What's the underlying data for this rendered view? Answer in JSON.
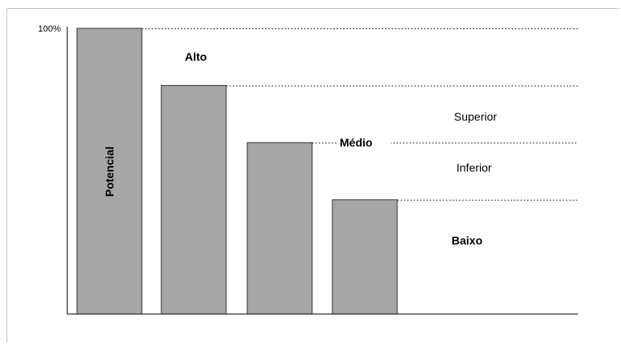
{
  "chart_data": {
    "type": "bar",
    "categories": [
      "Potencial",
      "",
      "",
      ""
    ],
    "values": [
      100,
      80,
      60,
      40
    ],
    "bar_labels": [
      "Potencial",
      "",
      "",
      ""
    ],
    "ylim": [
      0,
      100
    ],
    "y_tick_labels": [
      "100%"
    ],
    "reference_lines": [
      100,
      80,
      60,
      40
    ],
    "zone_labels": {
      "alto": "Alto",
      "medio": "Médio",
      "superior": "Superior",
      "inferior": "Inferior",
      "baixo": "Baixo"
    },
    "colors": {
      "bar_fill": "#a6a6a6",
      "bar_stroke": "#333333",
      "axis": "#000000",
      "grid": "#404040"
    },
    "grid": false,
    "legend": "none"
  }
}
